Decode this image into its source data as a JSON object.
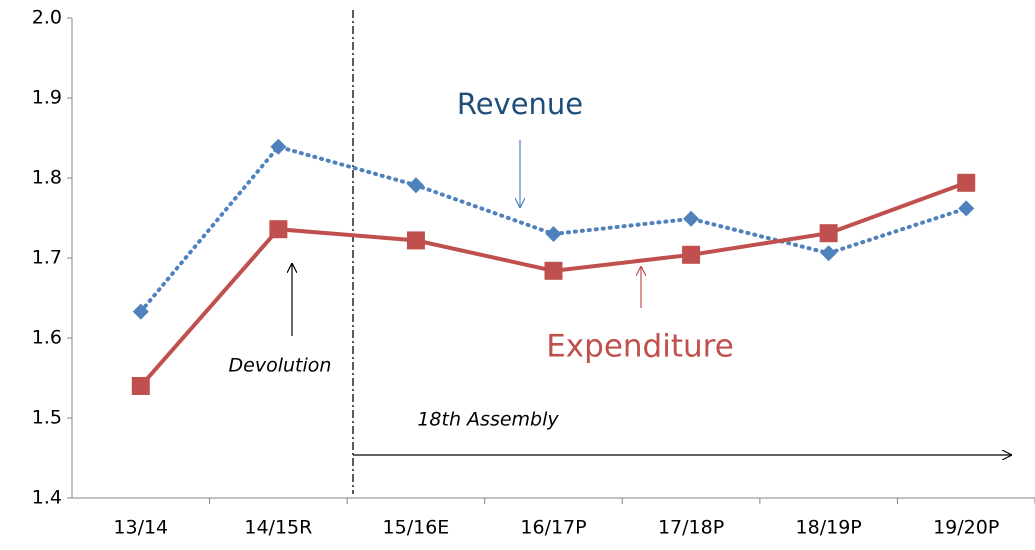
{
  "chart_data": {
    "type": "line",
    "categories": [
      "13/14",
      "14/15R",
      "15/16E",
      "16/17P",
      "17/18P",
      "18/19P",
      "19/20P"
    ],
    "series": [
      {
        "name": "Revenue",
        "color": "#4f81bd",
        "values": [
          1.633,
          1.839,
          1.791,
          1.73,
          1.749,
          1.706,
          1.762
        ]
      },
      {
        "name": "Expenditure",
        "color": "#c0504d",
        "values": [
          1.54,
          1.736,
          1.722,
          1.684,
          1.704,
          1.731,
          1.794
        ]
      }
    ],
    "annotations": [
      "Devolution",
      "18th Assembly"
    ],
    "ylim": [
      1.4,
      2.0
    ],
    "yticks": [
      1.4,
      1.5,
      1.6,
      1.7,
      1.8,
      1.9,
      {
        "value": 2.0,
        "label": "2.0"
      }
    ],
    "grid": false
  }
}
